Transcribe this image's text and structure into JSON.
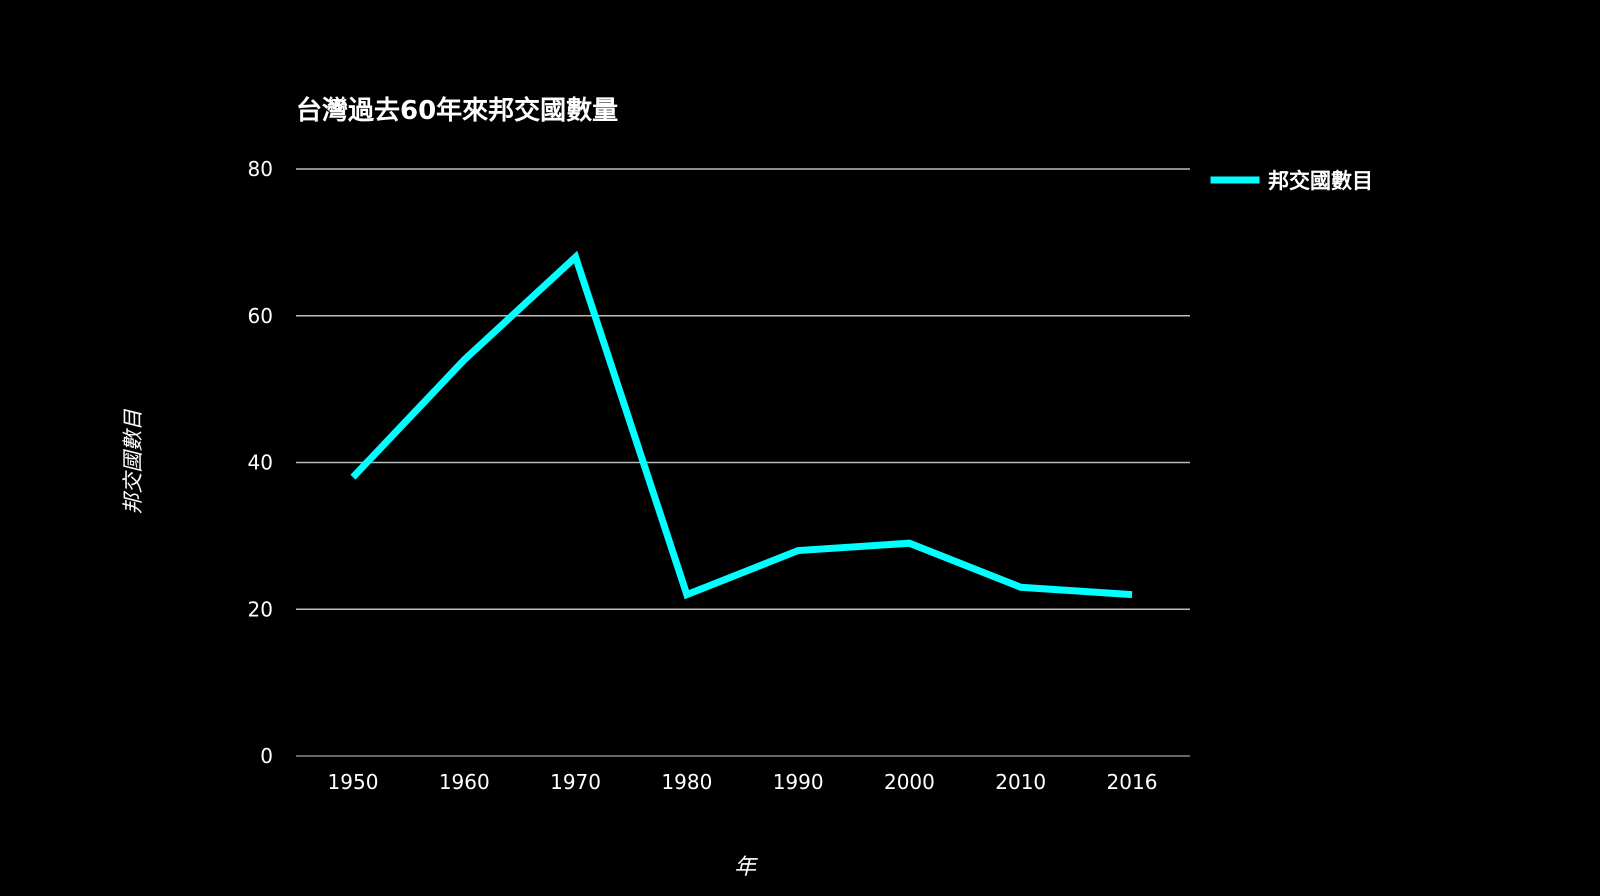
{
  "chart_data": {
    "type": "line",
    "title": "台灣過去60年來邦交國數量",
    "xlabel": "年",
    "ylabel": "邦交國數目",
    "categories": [
      "1950",
      "1960",
      "1970",
      "1980",
      "1990",
      "2000",
      "2010",
      "2016"
    ],
    "series": [
      {
        "name": "邦交國數目",
        "values": [
          38,
          54,
          68,
          22,
          28,
          29,
          23,
          22
        ],
        "color": "#00FFFF"
      }
    ],
    "ylim": [
      0,
      80
    ],
    "yticks": [
      0,
      20,
      40,
      60,
      80
    ],
    "grid": true,
    "legend_position": "right"
  },
  "colors": {
    "background": "#000000",
    "text": "#FFFFFF",
    "grid": "#BBBBBB",
    "axis": "#888888"
  }
}
